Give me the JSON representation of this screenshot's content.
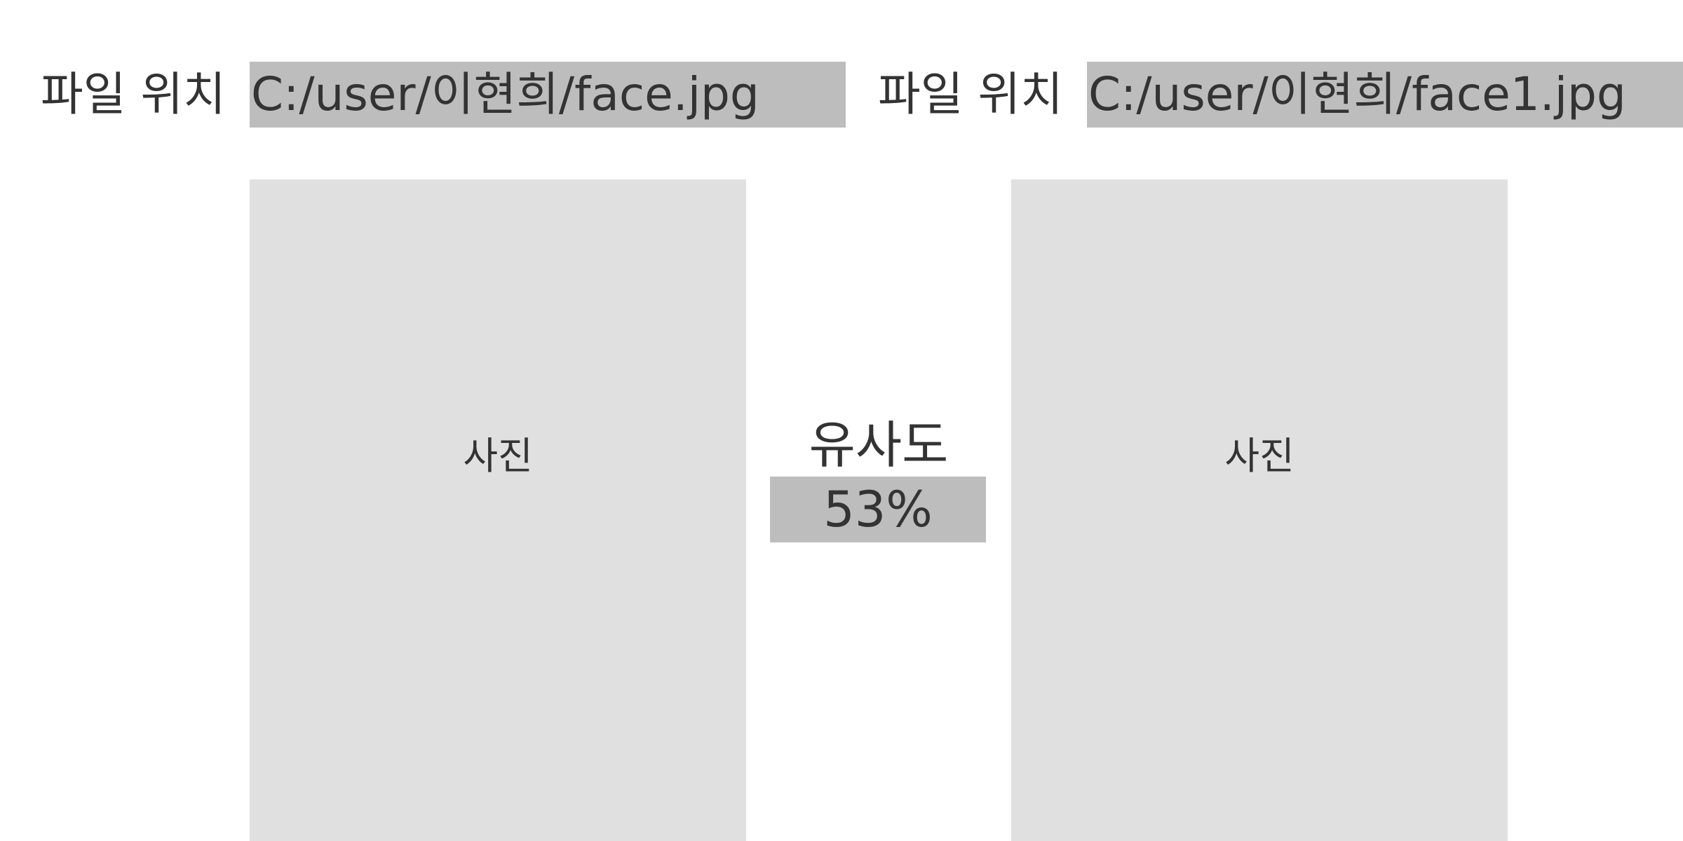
{
  "left": {
    "file_label": "파일 위치",
    "file_path": "C:/user/이현희/face.jpg",
    "photo_label": "사진"
  },
  "right": {
    "file_label": "파일 위치",
    "file_path": "C:/user/이현희/face1.jpg",
    "photo_label": "사진"
  },
  "similarity": {
    "title": "유사도",
    "value": "53%"
  },
  "colors": {
    "field_background": "#bdbdbd",
    "photo_background": "#e0e0e0",
    "text": "#333333"
  }
}
